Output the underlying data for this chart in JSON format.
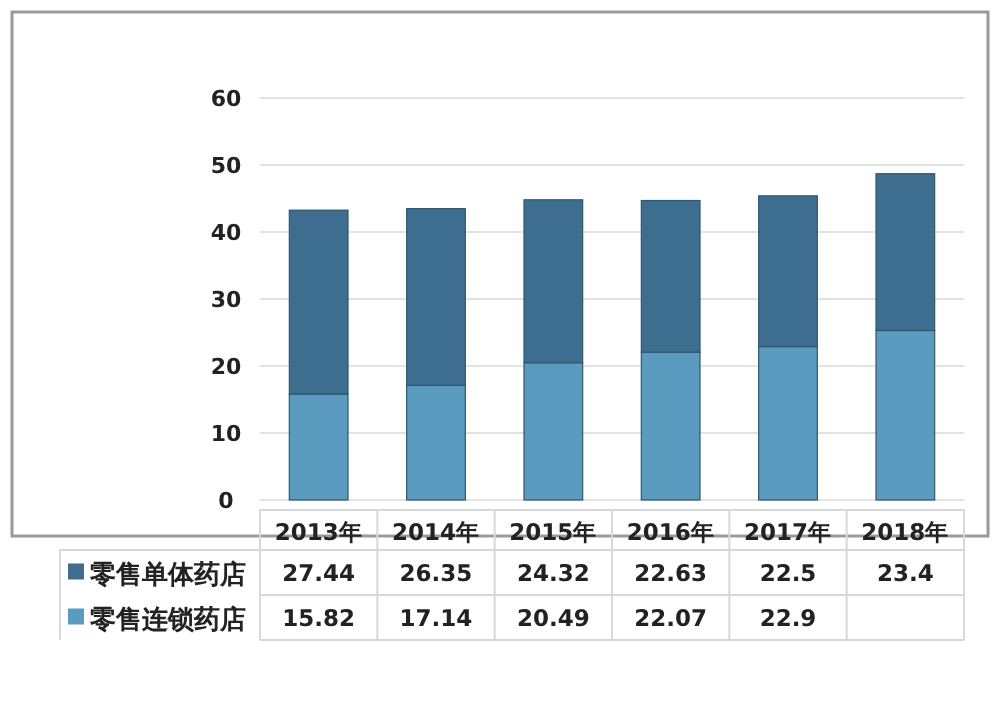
{
  "chart_data": {
    "type": "bar",
    "stacked": true,
    "categories": [
      "2013年",
      "2014年",
      "2015年",
      "2016年",
      "2017年",
      "2018年"
    ],
    "series": [
      {
        "name": "零售连锁药店",
        "color": "#5b9bbf",
        "values": [
          15.82,
          17.14,
          20.49,
          22.07,
          22.9,
          25.3
        ],
        "value_labels": [
          "15.82",
          "17.14",
          "20.49",
          "22.07",
          "22.9",
          null
        ]
      },
      {
        "name": "零售单体药店",
        "color": "#3d6e8f",
        "values": [
          27.44,
          26.35,
          24.32,
          22.63,
          22.5,
          23.4
        ],
        "value_labels": [
          "27.44",
          "26.35",
          "24.32",
          "22.63",
          "22.5",
          "23.4"
        ]
      }
    ],
    "ylim": [
      0,
      60
    ],
    "yticks": [
      0,
      10,
      20,
      30,
      40,
      50,
      60
    ],
    "grid": "y",
    "legend": "bottom"
  }
}
